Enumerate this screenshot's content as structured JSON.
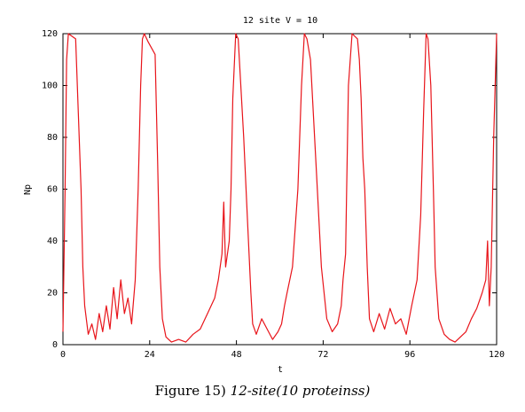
{
  "chart_data": {
    "type": "line",
    "title": "12 site V = 10",
    "xlabel": "t",
    "ylabel": "Np",
    "xlim": [
      0,
      120
    ],
    "ylim": [
      0,
      120
    ],
    "x_ticks": [
      "0",
      "24",
      "48",
      "72",
      "96",
      "120"
    ],
    "y_ticks": [
      "0",
      "20",
      "40",
      "60",
      "80",
      "100",
      "120"
    ],
    "grid": false,
    "legend": "none",
    "series": [
      {
        "color": "#e8141a",
        "x": [
          0,
          0.6,
          1.0,
          1.5,
          3.5,
          4.5,
          5.0,
          5.5,
          6.0,
          7.0,
          8.0,
          9.0,
          10.0,
          11.0,
          12.0,
          13.0,
          14.0,
          15.0,
          16.0,
          17.0,
          18.0,
          19.0,
          20.0,
          20.8,
          21.5,
          22.0,
          22.5,
          23.5,
          25.5,
          26.2,
          26.8,
          27.5,
          28.5,
          30.0,
          32.0,
          34.0,
          36.0,
          38.0,
          40.0,
          42.0,
          43.0,
          44.0,
          44.5,
          45.0,
          46.0,
          46.5,
          47.0,
          47.8,
          48.5,
          50.0,
          51.0,
          52.0,
          52.5,
          53.5,
          55.0,
          56.5,
          58.0,
          59.5,
          60.5,
          61.3,
          62.0,
          63.5,
          65.0,
          66.0,
          66.8,
          67.5,
          68.5,
          70.0,
          71.5,
          73.0,
          74.5,
          76.0,
          77.0,
          77.5,
          78.2,
          78.5,
          79.0,
          80.0,
          81.5,
          82.0,
          82.5,
          83.0,
          83.5,
          84.2,
          84.8,
          86.0,
          87.5,
          89.0,
          90.5,
          92.0,
          93.5,
          95.0,
          96.5,
          98.0,
          99.0,
          99.8,
          100.5,
          101.0,
          101.8,
          102.5,
          103.0,
          104.0,
          105.5,
          107.0,
          108.5,
          110.0,
          111.5,
          113.0,
          114.5,
          116.0,
          117.0,
          117.5,
          118.0,
          118.5,
          119.2,
          120.0
        ],
        "y": [
          5,
          60,
          110,
          120,
          118,
          80,
          60,
          30,
          15,
          4,
          8,
          2,
          12,
          5,
          15,
          6,
          22,
          10,
          25,
          12,
          18,
          8,
          25,
          60,
          100,
          118,
          120,
          117,
          112,
          70,
          30,
          10,
          3,
          1,
          2,
          1,
          4,
          6,
          12,
          18,
          25,
          35,
          55,
          30,
          40,
          60,
          95,
          120,
          118,
          80,
          50,
          20,
          8,
          4,
          10,
          6,
          2,
          5,
          8,
          15,
          20,
          30,
          60,
          100,
          120,
          118,
          110,
          70,
          30,
          10,
          5,
          8,
          15,
          25,
          35,
          60,
          100,
          120,
          118,
          110,
          95,
          72,
          60,
          30,
          10,
          5,
          12,
          6,
          14,
          8,
          10,
          4,
          15,
          25,
          50,
          90,
          120,
          118,
          100,
          60,
          30,
          10,
          4,
          2,
          1,
          3,
          5,
          10,
          14,
          20,
          25,
          40,
          15,
          30,
          80,
          120
        ]
      }
    ]
  },
  "caption": {
    "label": "Figure 15)",
    "text": "12-site(10 proteinss)"
  }
}
